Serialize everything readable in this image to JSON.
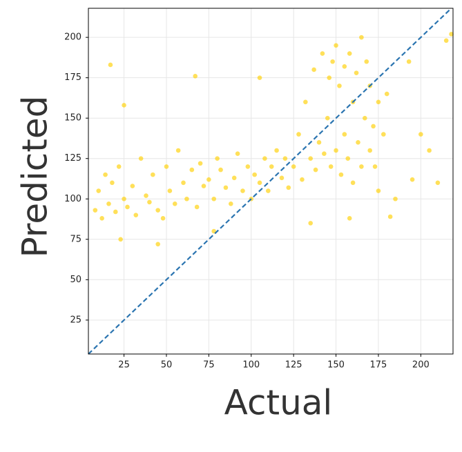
{
  "chart_data": {
    "type": "scatter",
    "x_label": "Actual",
    "y_label": "Predicted",
    "color": "#ffd000",
    "grid": true,
    "reference_line": true,
    "xlim": [
      4,
      219
    ],
    "ylim": [
      4,
      218
    ],
    "xticks": [
      25,
      50,
      75,
      100,
      125,
      150,
      175,
      200
    ],
    "yticks": [
      25,
      50,
      75,
      100,
      125,
      150,
      175,
      200
    ],
    "x": [
      8,
      10,
      12,
      14,
      16,
      18,
      20,
      22,
      25,
      27,
      30,
      32,
      35,
      38,
      40,
      42,
      45,
      48,
      50,
      52,
      55,
      57,
      60,
      62,
      65,
      68,
      70,
      72,
      75,
      78,
      80,
      82,
      85,
      88,
      90,
      92,
      95,
      98,
      100,
      102,
      105,
      108,
      110,
      112,
      115,
      118,
      120,
      122,
      125,
      128,
      130,
      132,
      135,
      137,
      138,
      140,
      142,
      143,
      145,
      146,
      147,
      148,
      150,
      150,
      152,
      153,
      155,
      155,
      157,
      158,
      160,
      160,
      162,
      163,
      165,
      165,
      167,
      168,
      170,
      170,
      172,
      173,
      175,
      175,
      178,
      180,
      17,
      25,
      67,
      105,
      193,
      210,
      215,
      185,
      200,
      195,
      205,
      23,
      45,
      78,
      135,
      158,
      182,
      218
    ],
    "y": [
      93,
      105,
      88,
      115,
      97,
      110,
      92,
      120,
      100,
      95,
      108,
      90,
      125,
      102,
      98,
      115,
      93,
      88,
      120,
      105,
      97,
      130,
      110,
      100,
      118,
      95,
      122,
      108,
      112,
      100,
      125,
      118,
      107,
      97,
      113,
      128,
      105,
      120,
      100,
      115,
      110,
      125,
      105,
      120,
      130,
      113,
      125,
      107,
      120,
      140,
      112,
      160,
      125,
      180,
      118,
      135,
      190,
      128,
      150,
      175,
      120,
      185,
      130,
      195,
      170,
      115,
      182,
      140,
      125,
      190,
      160,
      110,
      178,
      135,
      200,
      120,
      150,
      185,
      130,
      170,
      145,
      120,
      160,
      105,
      140,
      165,
      183,
      158,
      176,
      175,
      185,
      110,
      198,
      100,
      140,
      112,
      130,
      75,
      72,
      80,
      85,
      88,
      89,
      202
    ]
  }
}
